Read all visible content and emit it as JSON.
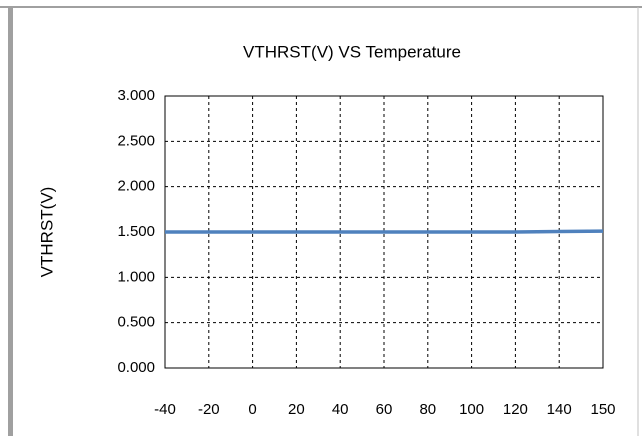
{
  "chart_data": {
    "type": "line",
    "title": "VTHRST(V) VS Temperature",
    "y_label": "VTHRST(V)",
    "categories": [
      "-40",
      "-20",
      "0",
      "20",
      "40",
      "60",
      "80",
      "100",
      "120",
      "140",
      "150"
    ],
    "series": [
      {
        "name": "VTHRST(V)",
        "color": "#4f81bd",
        "values": [
          1.5,
          1.5,
          1.5,
          1.5,
          1.5,
          1.5,
          1.5,
          1.5,
          1.5,
          1.505,
          1.51
        ]
      }
    ],
    "ylim": [
      0,
      3
    ],
    "yticks": [
      {
        "value": 0,
        "label": "0.000"
      },
      {
        "value": 0.5,
        "label": "0.500"
      },
      {
        "value": 1,
        "label": "1.000"
      },
      {
        "value": 1.5,
        "label": "1.500"
      },
      {
        "value": 2,
        "label": "2.000"
      },
      {
        "value": 2.5,
        "label": "2.500"
      },
      {
        "value": 3,
        "label": "3.000"
      }
    ],
    "grid": true
  }
}
